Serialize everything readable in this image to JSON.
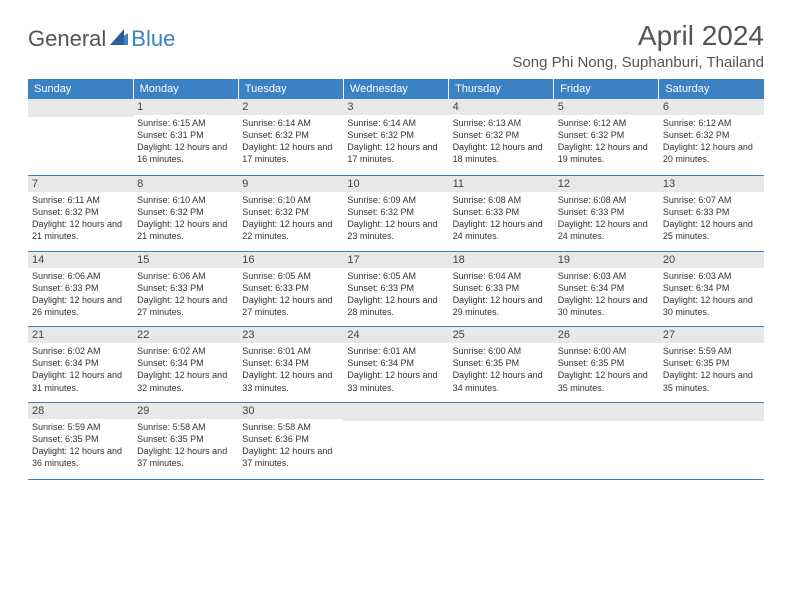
{
  "logo": {
    "text1": "General",
    "text2": "Blue"
  },
  "title": "April 2024",
  "location": "Song Phi Nong, Suphanburi, Thailand",
  "colors": {
    "header_bg": "#3b82c4",
    "header_text": "#ffffff",
    "daynum_bg": "#e8e8e8",
    "body_text": "#333333",
    "title_text": "#555555",
    "border": "#3b82c4",
    "page_bg": "#ffffff"
  },
  "typography": {
    "title_fontsize": 28,
    "location_fontsize": 15,
    "weekday_fontsize": 11,
    "daynum_fontsize": 11,
    "body_fontsize": 9,
    "font_family": "Arial"
  },
  "weekdays": [
    "Sunday",
    "Monday",
    "Tuesday",
    "Wednesday",
    "Thursday",
    "Friday",
    "Saturday"
  ],
  "weeks": [
    [
      {
        "num": "",
        "sunrise": "",
        "sunset": "",
        "daylight": ""
      },
      {
        "num": "1",
        "sunrise": "Sunrise: 6:15 AM",
        "sunset": "Sunset: 6:31 PM",
        "daylight": "Daylight: 12 hours and 16 minutes."
      },
      {
        "num": "2",
        "sunrise": "Sunrise: 6:14 AM",
        "sunset": "Sunset: 6:32 PM",
        "daylight": "Daylight: 12 hours and 17 minutes."
      },
      {
        "num": "3",
        "sunrise": "Sunrise: 6:14 AM",
        "sunset": "Sunset: 6:32 PM",
        "daylight": "Daylight: 12 hours and 17 minutes."
      },
      {
        "num": "4",
        "sunrise": "Sunrise: 6:13 AM",
        "sunset": "Sunset: 6:32 PM",
        "daylight": "Daylight: 12 hours and 18 minutes."
      },
      {
        "num": "5",
        "sunrise": "Sunrise: 6:12 AM",
        "sunset": "Sunset: 6:32 PM",
        "daylight": "Daylight: 12 hours and 19 minutes."
      },
      {
        "num": "6",
        "sunrise": "Sunrise: 6:12 AM",
        "sunset": "Sunset: 6:32 PM",
        "daylight": "Daylight: 12 hours and 20 minutes."
      }
    ],
    [
      {
        "num": "7",
        "sunrise": "Sunrise: 6:11 AM",
        "sunset": "Sunset: 6:32 PM",
        "daylight": "Daylight: 12 hours and 21 minutes."
      },
      {
        "num": "8",
        "sunrise": "Sunrise: 6:10 AM",
        "sunset": "Sunset: 6:32 PM",
        "daylight": "Daylight: 12 hours and 21 minutes."
      },
      {
        "num": "9",
        "sunrise": "Sunrise: 6:10 AM",
        "sunset": "Sunset: 6:32 PM",
        "daylight": "Daylight: 12 hours and 22 minutes."
      },
      {
        "num": "10",
        "sunrise": "Sunrise: 6:09 AM",
        "sunset": "Sunset: 6:32 PM",
        "daylight": "Daylight: 12 hours and 23 minutes."
      },
      {
        "num": "11",
        "sunrise": "Sunrise: 6:08 AM",
        "sunset": "Sunset: 6:33 PM",
        "daylight": "Daylight: 12 hours and 24 minutes."
      },
      {
        "num": "12",
        "sunrise": "Sunrise: 6:08 AM",
        "sunset": "Sunset: 6:33 PM",
        "daylight": "Daylight: 12 hours and 24 minutes."
      },
      {
        "num": "13",
        "sunrise": "Sunrise: 6:07 AM",
        "sunset": "Sunset: 6:33 PM",
        "daylight": "Daylight: 12 hours and 25 minutes."
      }
    ],
    [
      {
        "num": "14",
        "sunrise": "Sunrise: 6:06 AM",
        "sunset": "Sunset: 6:33 PM",
        "daylight": "Daylight: 12 hours and 26 minutes."
      },
      {
        "num": "15",
        "sunrise": "Sunrise: 6:06 AM",
        "sunset": "Sunset: 6:33 PM",
        "daylight": "Daylight: 12 hours and 27 minutes."
      },
      {
        "num": "16",
        "sunrise": "Sunrise: 6:05 AM",
        "sunset": "Sunset: 6:33 PM",
        "daylight": "Daylight: 12 hours and 27 minutes."
      },
      {
        "num": "17",
        "sunrise": "Sunrise: 6:05 AM",
        "sunset": "Sunset: 6:33 PM",
        "daylight": "Daylight: 12 hours and 28 minutes."
      },
      {
        "num": "18",
        "sunrise": "Sunrise: 6:04 AM",
        "sunset": "Sunset: 6:33 PM",
        "daylight": "Daylight: 12 hours and 29 minutes."
      },
      {
        "num": "19",
        "sunrise": "Sunrise: 6:03 AM",
        "sunset": "Sunset: 6:34 PM",
        "daylight": "Daylight: 12 hours and 30 minutes."
      },
      {
        "num": "20",
        "sunrise": "Sunrise: 6:03 AM",
        "sunset": "Sunset: 6:34 PM",
        "daylight": "Daylight: 12 hours and 30 minutes."
      }
    ],
    [
      {
        "num": "21",
        "sunrise": "Sunrise: 6:02 AM",
        "sunset": "Sunset: 6:34 PM",
        "daylight": "Daylight: 12 hours and 31 minutes."
      },
      {
        "num": "22",
        "sunrise": "Sunrise: 6:02 AM",
        "sunset": "Sunset: 6:34 PM",
        "daylight": "Daylight: 12 hours and 32 minutes."
      },
      {
        "num": "23",
        "sunrise": "Sunrise: 6:01 AM",
        "sunset": "Sunset: 6:34 PM",
        "daylight": "Daylight: 12 hours and 33 minutes."
      },
      {
        "num": "24",
        "sunrise": "Sunrise: 6:01 AM",
        "sunset": "Sunset: 6:34 PM",
        "daylight": "Daylight: 12 hours and 33 minutes."
      },
      {
        "num": "25",
        "sunrise": "Sunrise: 6:00 AM",
        "sunset": "Sunset: 6:35 PM",
        "daylight": "Daylight: 12 hours and 34 minutes."
      },
      {
        "num": "26",
        "sunrise": "Sunrise: 6:00 AM",
        "sunset": "Sunset: 6:35 PM",
        "daylight": "Daylight: 12 hours and 35 minutes."
      },
      {
        "num": "27",
        "sunrise": "Sunrise: 5:59 AM",
        "sunset": "Sunset: 6:35 PM",
        "daylight": "Daylight: 12 hours and 35 minutes."
      }
    ],
    [
      {
        "num": "28",
        "sunrise": "Sunrise: 5:59 AM",
        "sunset": "Sunset: 6:35 PM",
        "daylight": "Daylight: 12 hours and 36 minutes."
      },
      {
        "num": "29",
        "sunrise": "Sunrise: 5:58 AM",
        "sunset": "Sunset: 6:35 PM",
        "daylight": "Daylight: 12 hours and 37 minutes."
      },
      {
        "num": "30",
        "sunrise": "Sunrise: 5:58 AM",
        "sunset": "Sunset: 6:36 PM",
        "daylight": "Daylight: 12 hours and 37 minutes."
      },
      {
        "num": "",
        "sunrise": "",
        "sunset": "",
        "daylight": ""
      },
      {
        "num": "",
        "sunrise": "",
        "sunset": "",
        "daylight": ""
      },
      {
        "num": "",
        "sunrise": "",
        "sunset": "",
        "daylight": ""
      },
      {
        "num": "",
        "sunrise": "",
        "sunset": "",
        "daylight": ""
      }
    ]
  ]
}
